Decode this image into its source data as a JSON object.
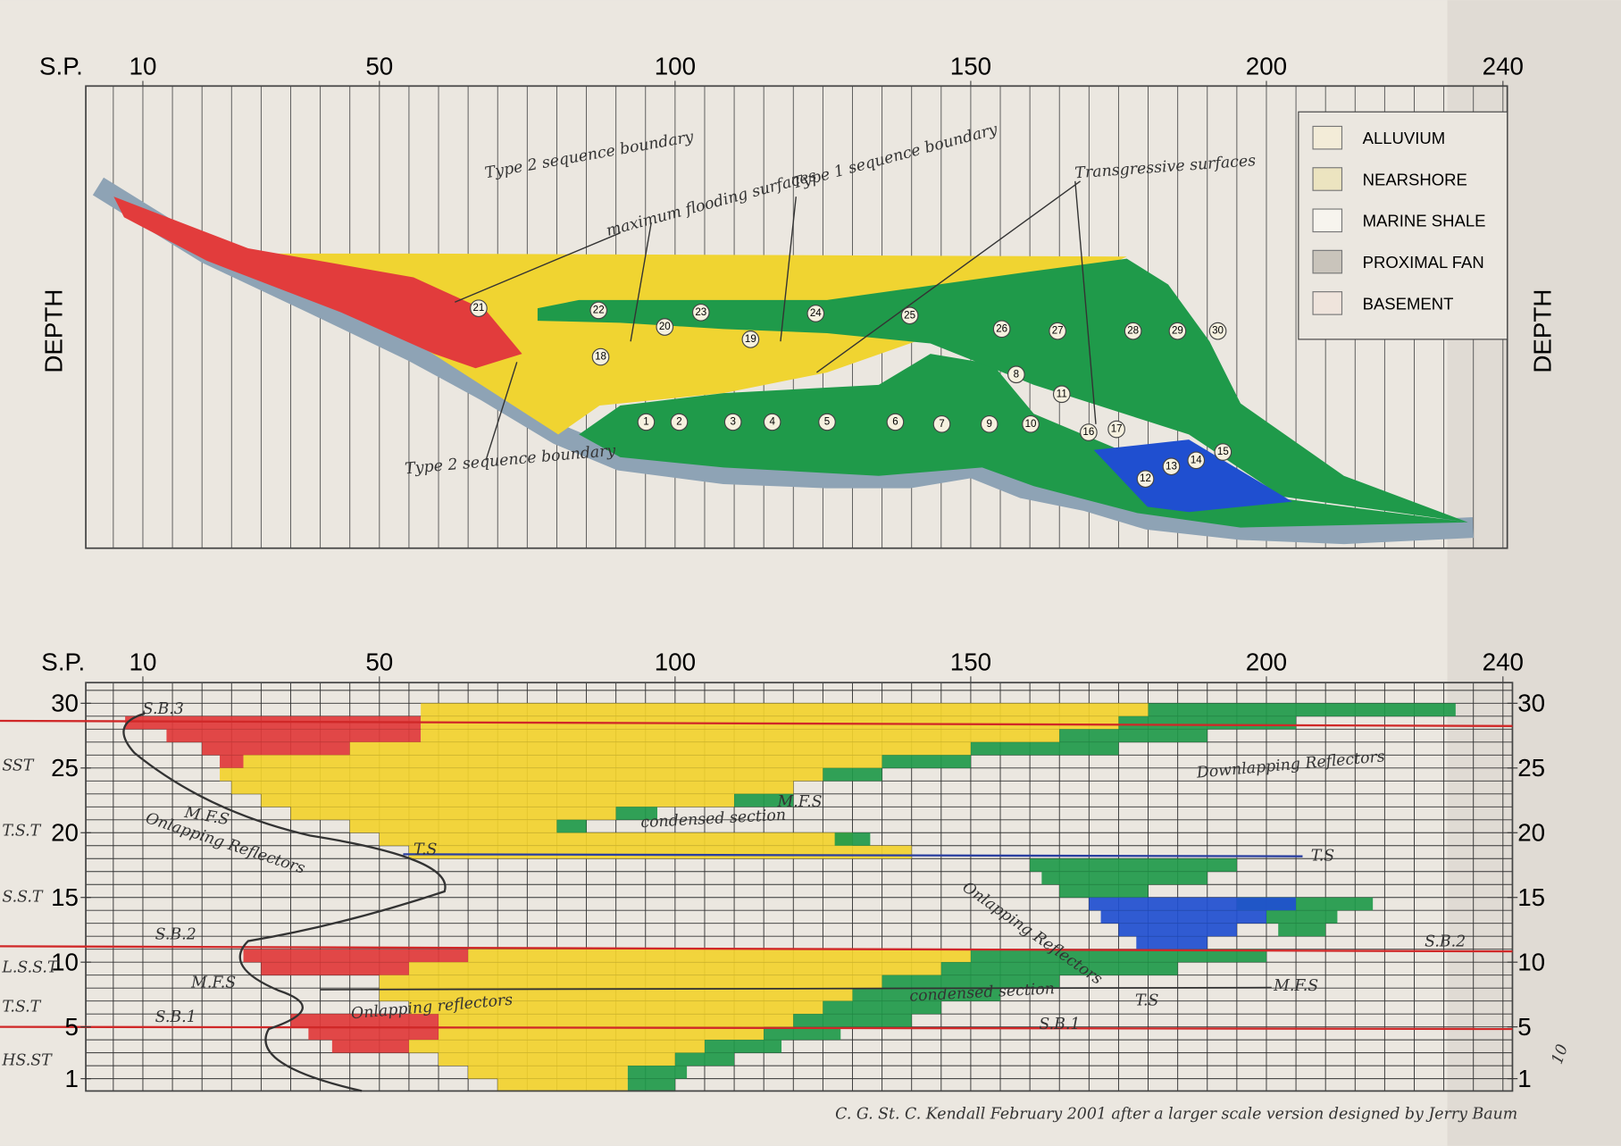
{
  "section": {
    "sp_label": "S.P.",
    "sp_ticks": [
      10,
      50,
      100,
      150,
      200,
      240
    ],
    "depth_label": "DEPTH",
    "legend": [
      "ALLUVIUM",
      "NEARSHORE",
      "MARINE SHALE",
      "PROXIMAL FAN",
      "BASEMENT"
    ],
    "annotations": [
      "Type 2 sequence boundary",
      "maximum flooding surfaces",
      "Type 1 sequence boundary",
      "Transgressive surfaces",
      "Type 2 sequence boundary"
    ],
    "units": [
      "1",
      "2",
      "3",
      "4",
      "5",
      "6",
      "7",
      "8",
      "9",
      "10",
      "11",
      "12",
      "13",
      "14",
      "15",
      "16",
      "17",
      "18",
      "19",
      "20",
      "21",
      "22",
      "23",
      "24",
      "25",
      "26",
      "27",
      "28",
      "29",
      "30"
    ]
  },
  "wheeler": {
    "sp_label": "S.P.",
    "sp_ticks": [
      10,
      50,
      100,
      150,
      200,
      240
    ],
    "time_ticks": [
      30,
      25,
      20,
      15,
      10,
      5,
      1
    ],
    "systems_tracts": [
      "SST",
      "T.S.T",
      "S.S.T",
      "L.S.S.T",
      "T.S.T",
      "HS.ST"
    ],
    "annotations": [
      "S.B.3",
      "M.F.S",
      "Onlapping Reflectors",
      "T.S",
      "condensed section",
      "M.F.S",
      "Downlapping Reflectors",
      "T.S",
      "Onlapping Reflectors",
      "S.B.2",
      "S.B.2",
      "M.F.S",
      "M.F.S",
      "condensed section",
      "T.S",
      "Onlapping reflectors",
      "S.B.1",
      "S.B.1"
    ]
  },
  "credit": "C. G. St. C. Kendall February 2001 after a larger scale version designed by Jerry Baum",
  "margin_mark": "10"
}
